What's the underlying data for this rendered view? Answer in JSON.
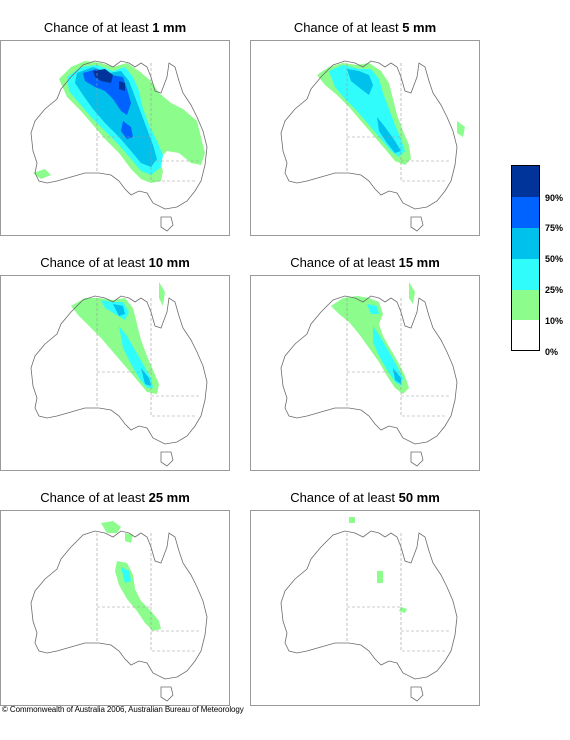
{
  "panels": [
    {
      "prefix": "Chance of at least ",
      "amount": "1 mm"
    },
    {
      "prefix": "Chance of at least ",
      "amount": "5 mm"
    },
    {
      "prefix": "Chance of at least ",
      "amount": "10 mm"
    },
    {
      "prefix": "Chance of at least ",
      "amount": "15 mm"
    },
    {
      "prefix": "Chance of at least ",
      "amount": "25 mm"
    },
    {
      "prefix": "Chance of at least ",
      "amount": "50 mm"
    }
  ],
  "legend": {
    "labels": [
      "90%",
      "75%",
      "50%",
      "25%",
      "10%",
      "0%"
    ],
    "colors": [
      "#00349a",
      "#0063ff",
      "#00c0ec",
      "#30fcfc",
      "#8cfc8c",
      "#ffffff"
    ]
  },
  "colors": {
    "outline": "#6c6c6c",
    "border_lines": "#9a9a9a",
    "frame": "#9a9a9a"
  },
  "copyright": "© Commonwealth of Australia 2006, Australian Bureau of Meteorology"
}
